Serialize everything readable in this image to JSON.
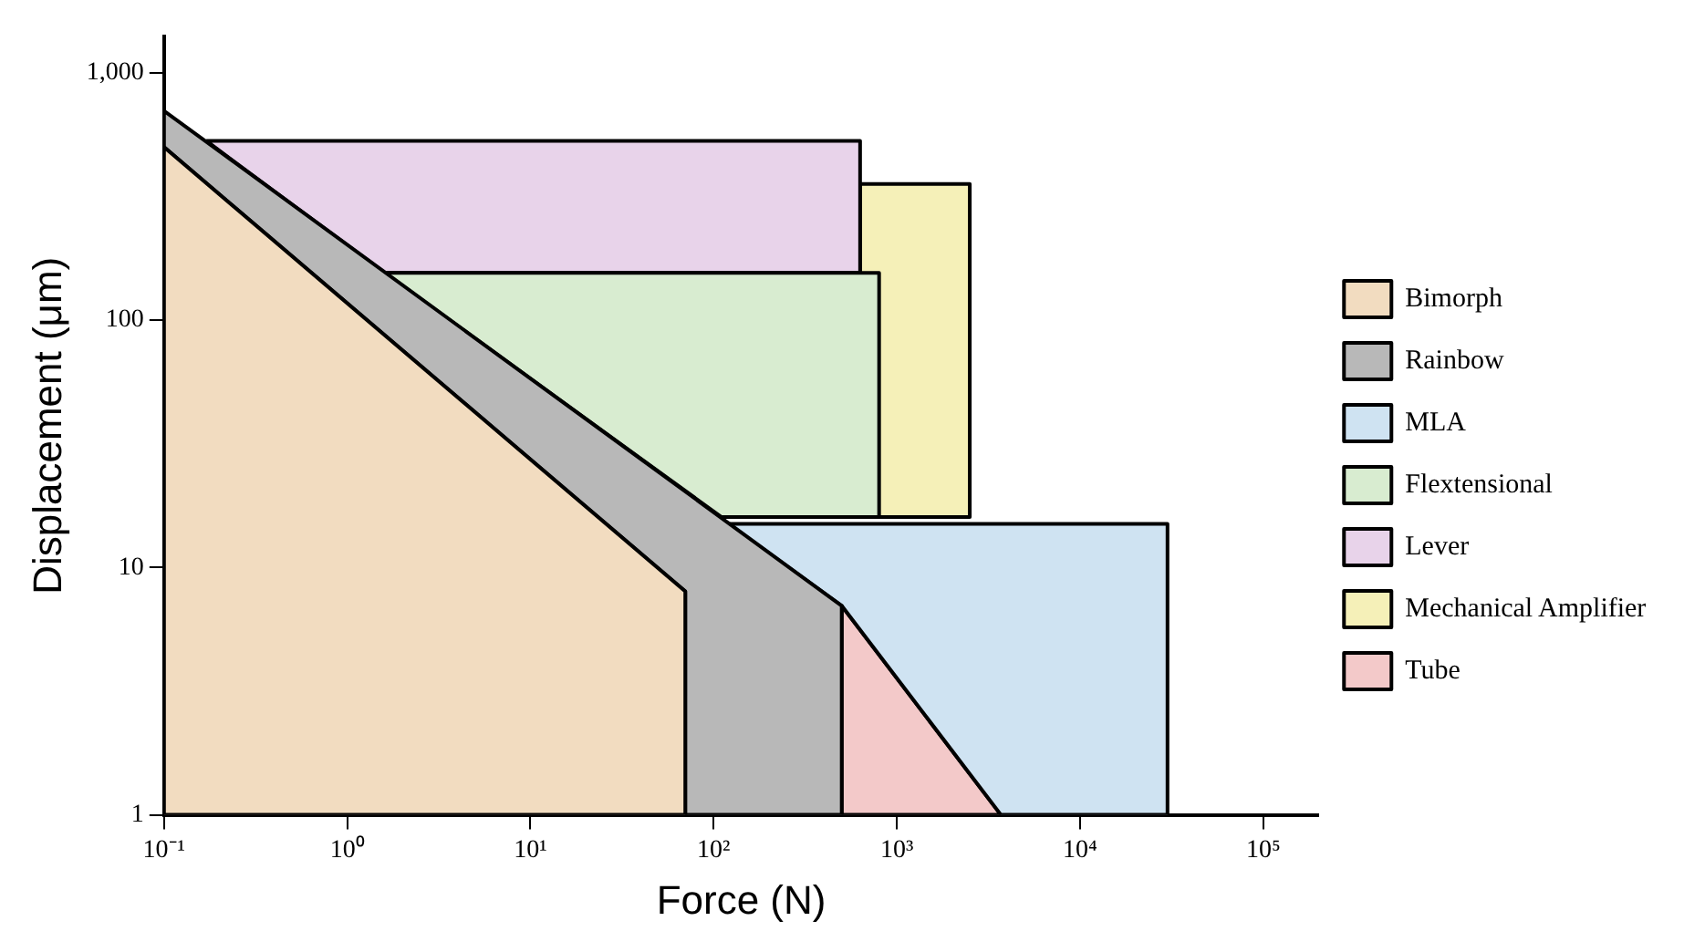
{
  "chart_data": {
    "type": "area",
    "xlabel": "Force (N)",
    "ylabel": "Displacement (μm)",
    "log": "xy",
    "grid": false,
    "legend": "right",
    "marker": "none",
    "xlim": [
      0.1,
      200000
    ],
    "ylim": [
      1,
      1400
    ],
    "xticks": [
      {
        "value": 0.1,
        "label": "10⁻¹"
      },
      {
        "value": 1,
        "label": "10⁰"
      },
      {
        "value": 10,
        "label": "10¹"
      },
      {
        "value": 100,
        "label": "10²"
      },
      {
        "value": 1000,
        "label": "10³"
      },
      {
        "value": 10000,
        "label": "10⁴"
      },
      {
        "value": 100000,
        "label": "10⁵"
      }
    ],
    "yticks": [
      1,
      10,
      100,
      {
        "value": 1000,
        "label": "1,000"
      }
    ],
    "series": [
      {
        "name": "Bimorph",
        "color": "#f2dcc0",
        "x": [
          0.1,
          0.1,
          70,
          70
        ],
        "values": [
          1,
          500,
          8,
          1
        ]
      },
      {
        "name": "Rainbow",
        "color": "#b8b8b8",
        "x": [
          70,
          70,
          0.1,
          0.1,
          500,
          500
        ],
        "values": [
          1,
          8,
          500,
          700,
          7,
          1
        ]
      },
      {
        "name": "MLA",
        "color": "#cfe3f2",
        "x": [
          120,
          30000,
          30000,
          3700,
          500
        ],
        "values": [
          15,
          15,
          1,
          1,
          7
        ]
      },
      {
        "name": "Flextensional",
        "color": "#d8ecd0",
        "x": [
          1.6,
          800,
          800,
          110
        ],
        "values": [
          155,
          155,
          16,
          16
        ]
      },
      {
        "name": "Lever",
        "color": "#e8d3ea",
        "x": [
          0.17,
          630,
          630,
          1.6
        ],
        "values": [
          530,
          530,
          155,
          155
        ]
      },
      {
        "name": "Mechanical Amplifier",
        "color": "#f5f0b8",
        "x": [
          630,
          2500,
          2500,
          630
        ],
        "values": [
          355,
          355,
          16,
          16
        ]
      },
      {
        "name": "Tube",
        "color": "#f3c9c9",
        "x": [
          500,
          3700,
          500
        ],
        "values": [
          7,
          1,
          1
        ]
      }
    ]
  }
}
